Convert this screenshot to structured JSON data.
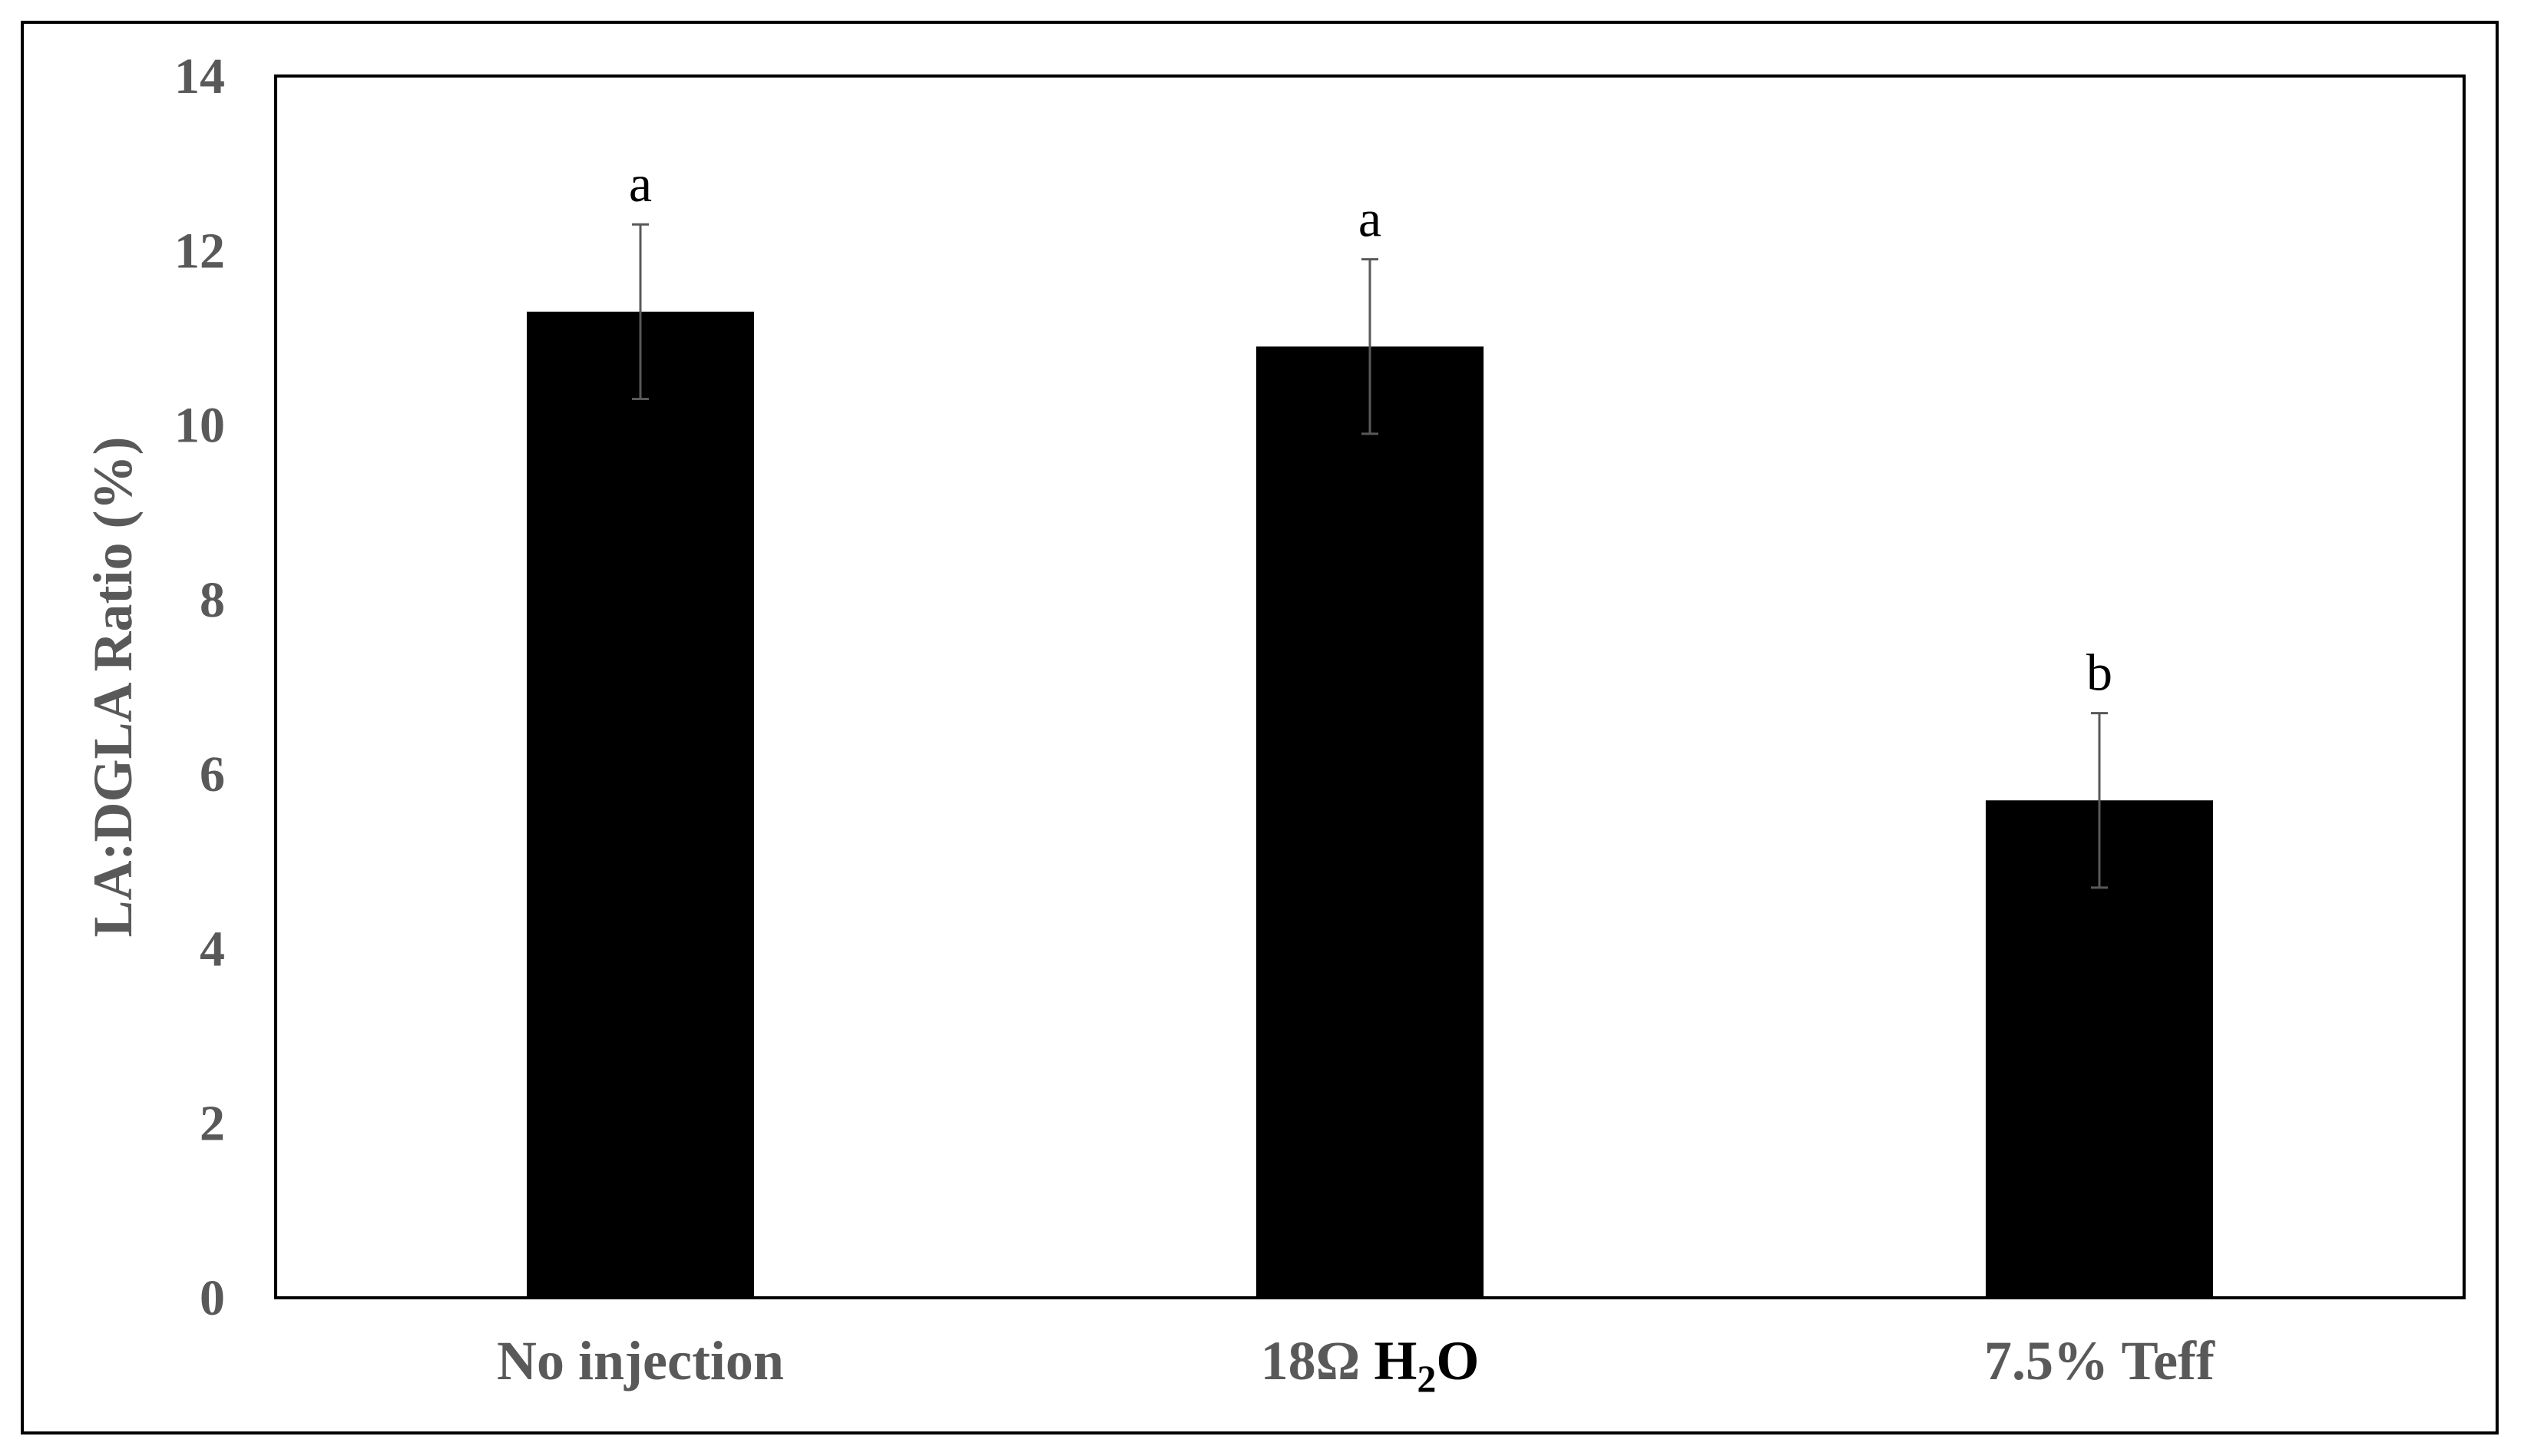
{
  "chart_data": {
    "type": "bar",
    "title": "",
    "xlabel": "",
    "ylabel": "LA:DGLA Ratio (%)",
    "ylim": [
      0,
      14
    ],
    "yticks": [
      0,
      2,
      4,
      6,
      8,
      10,
      12,
      14
    ],
    "grid": false,
    "categories": [
      {
        "parts": [
          {
            "text": "No injection"
          }
        ]
      },
      {
        "parts": [
          {
            "text": "18Ω "
          },
          {
            "text": "H",
            "dark": true
          },
          {
            "text": "2",
            "sub": true,
            "dark": true
          },
          {
            "text": "O",
            "dark": true
          }
        ]
      },
      {
        "parts": [
          {
            "text": "7.5% Teff"
          }
        ]
      }
    ],
    "values": [
      11.3,
      10.9,
      5.7
    ],
    "errors": [
      1.0,
      1.0,
      1.0
    ],
    "significance": [
      "a",
      "a",
      "b"
    ],
    "bar_color": "#000000",
    "axis_text_color": "#595959"
  }
}
